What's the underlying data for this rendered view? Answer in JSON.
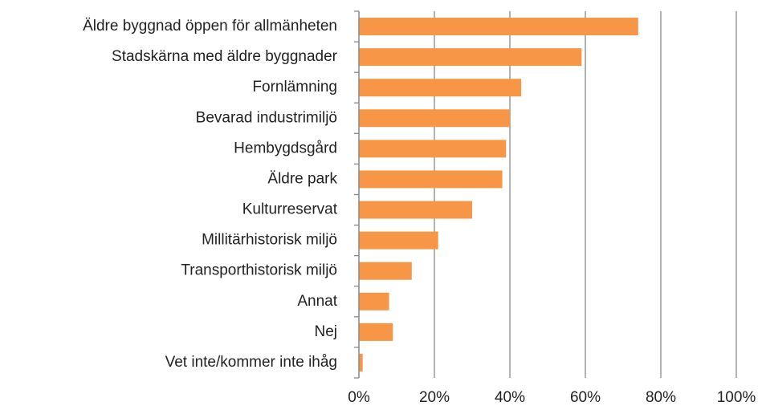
{
  "chart_data": {
    "type": "hbar",
    "categories": [
      "Äldre byggnad öppen för allmänheten",
      "Stadskärna med äldre byggnader",
      "Fornlämning",
      "Bevarad industrimiljö",
      "Hembygdsgård",
      "Äldre park ",
      "Kulturreservat",
      "Millitärhistorisk miljö",
      "Transporthistorisk miljö",
      "Annat",
      "Nej",
      "Vet inte/kommer inte ihåg"
    ],
    "values": [
      74,
      59,
      43,
      40,
      39,
      38,
      30,
      21,
      14,
      8,
      9,
      1
    ],
    "color": "#f79646",
    "xlim": [
      0,
      100
    ],
    "xticks": [
      {
        "value": 0,
        "label": "0%"
      },
      {
        "value": 20,
        "label": "20%"
      },
      {
        "value": 40,
        "label": "40%"
      },
      {
        "value": 60,
        "label": "60%"
      },
      {
        "value": 80,
        "label": "80%"
      },
      {
        "value": 100,
        "label": "100%"
      }
    ],
    "grid": true
  }
}
